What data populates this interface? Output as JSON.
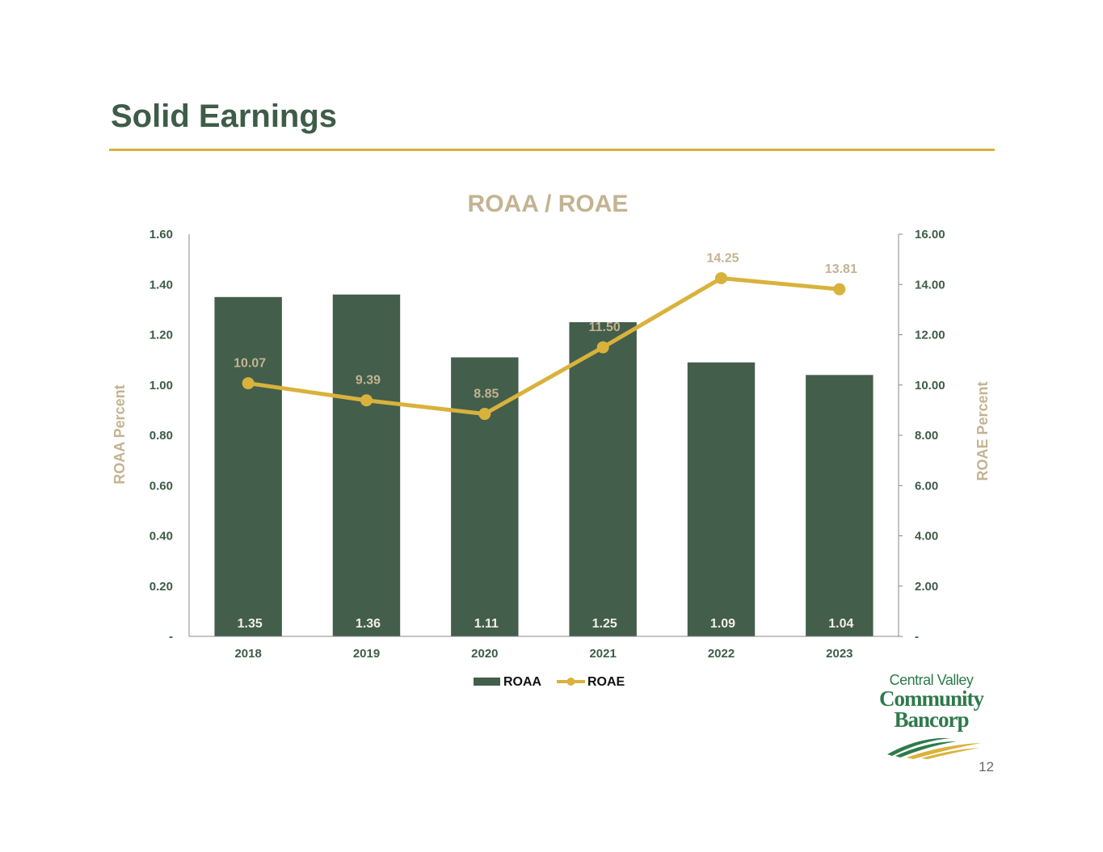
{
  "page": {
    "title": "Solid Earnings",
    "page_number": "12"
  },
  "logo": {
    "line1": "Central Valley",
    "line2": "Community",
    "line3": "Bancorp"
  },
  "colors": {
    "bar": "#435e4b",
    "line": "#d9b23c",
    "accent_text": "#c3b391",
    "axis_text": "#3e5c48"
  },
  "chart_data": {
    "type": "bar+line",
    "title": "ROAA / ROAE",
    "categories": [
      "2018",
      "2019",
      "2020",
      "2021",
      "2022",
      "2023"
    ],
    "series": [
      {
        "name": "ROAA",
        "type": "bar",
        "axis": "left",
        "values": [
          1.35,
          1.36,
          1.11,
          1.25,
          1.09,
          1.04
        ],
        "labels": [
          "1.35",
          "1.36",
          "1.11",
          "1.25",
          "1.09",
          "1.04"
        ]
      },
      {
        "name": "ROAE",
        "type": "line",
        "axis": "right",
        "values": [
          10.07,
          9.39,
          8.85,
          11.5,
          14.25,
          13.81
        ],
        "labels": [
          "10.07",
          "9.39",
          "8.85",
          "11.50",
          "14.25",
          "13.81"
        ]
      }
    ],
    "y_left": {
      "label": "ROAA Percent",
      "ylim": [
        0,
        1.6
      ],
      "ticks": [
        "-",
        "0.20",
        "0.40",
        "0.60",
        "0.80",
        "1.00",
        "1.20",
        "1.40",
        "1.60"
      ]
    },
    "y_right": {
      "label": "ROAE Percent",
      "ylim": [
        0,
        16
      ],
      "ticks": [
        "-",
        "2.00",
        "4.00",
        "6.00",
        "8.00",
        "10.00",
        "12.00",
        "14.00",
        "16.00"
      ]
    },
    "legend": {
      "position": "bottom",
      "items": [
        "ROAA",
        "ROAE"
      ]
    },
    "grid": false
  }
}
